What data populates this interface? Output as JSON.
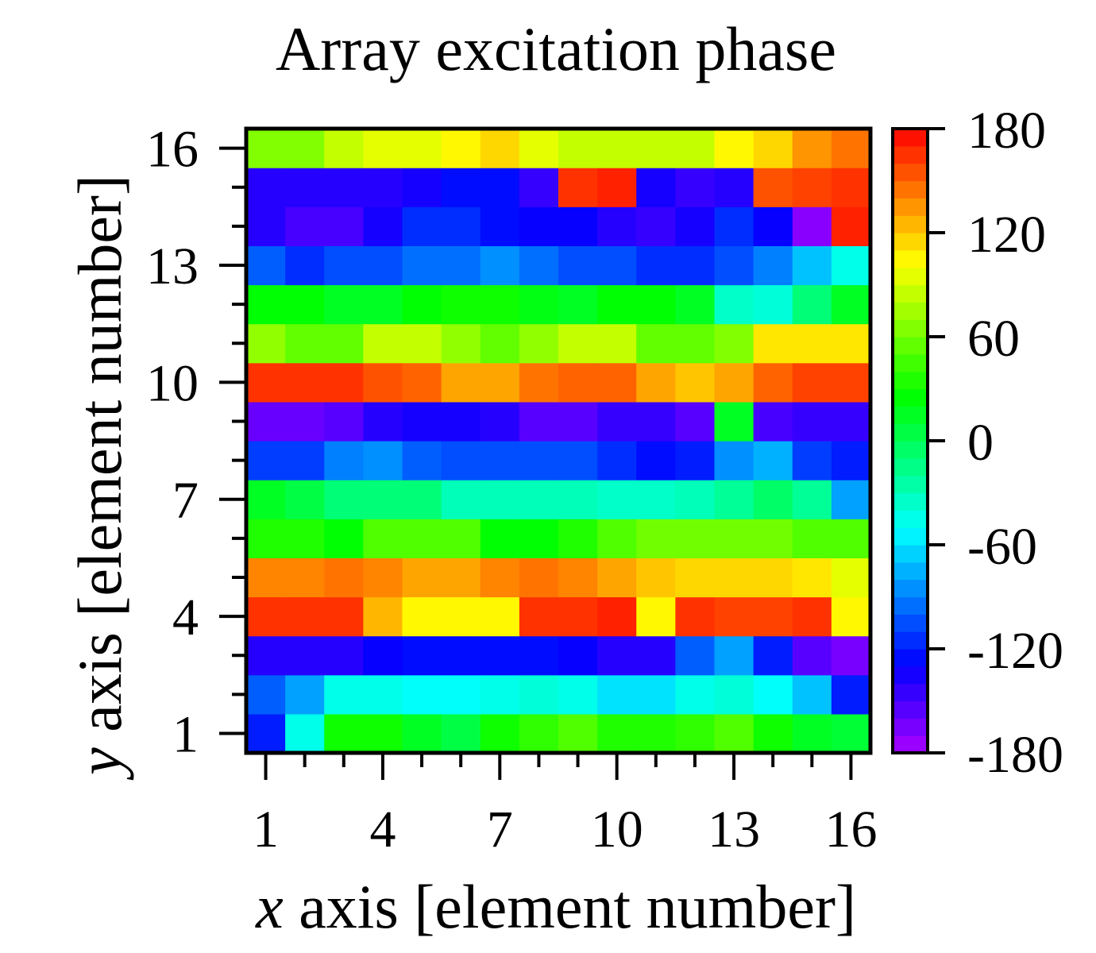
{
  "chart_data": {
    "type": "heatmap",
    "title": "Array excitation phase",
    "xlabel_var": "x",
    "xlabel_rest": " axis [element number]",
    "ylabel_var": "y",
    "ylabel_rest": " axis [element number]",
    "x_range": [
      1,
      16
    ],
    "y_range": [
      1,
      16
    ],
    "x_ticks": [
      1,
      4,
      7,
      10,
      13,
      16
    ],
    "y_ticks": [
      1,
      4,
      7,
      10,
      13,
      16
    ],
    "colorbar": {
      "range": [
        -180,
        180
      ],
      "ticks": [
        180,
        120,
        60,
        0,
        -60,
        -120,
        -180
      ],
      "tick_labels": [
        "180",
        "120",
        "60",
        "0",
        "-60",
        "-120",
        "-180"
      ]
    },
    "values_rows_from_y1": [
      [
        -120,
        -45,
        30,
        30,
        15,
        5,
        30,
        40,
        50,
        35,
        35,
        40,
        50,
        30,
        15,
        10
      ],
      [
        -100,
        -80,
        -45,
        -45,
        -50,
        -50,
        -45,
        -40,
        -45,
        -60,
        -60,
        -45,
        -40,
        -50,
        -70,
        -120
      ],
      [
        -140,
        -140,
        -140,
        -130,
        -125,
        -125,
        -125,
        -125,
        -130,
        -140,
        -140,
        -100,
        -80,
        -120,
        -155,
        -165
      ],
      [
        165,
        165,
        165,
        125,
        105,
        105,
        105,
        165,
        165,
        170,
        105,
        165,
        160,
        160,
        165,
        105
      ],
      [
        140,
        140,
        145,
        140,
        130,
        130,
        140,
        145,
        140,
        130,
        120,
        115,
        115,
        115,
        110,
        95
      ],
      [
        35,
        35,
        25,
        50,
        50,
        50,
        25,
        25,
        35,
        50,
        60,
        60,
        60,
        60,
        50,
        50
      ],
      [
        15,
        5,
        -10,
        -10,
        -10,
        -30,
        -30,
        -30,
        -30,
        -35,
        -35,
        -30,
        -20,
        -5,
        -20,
        -80
      ],
      [
        -110,
        -110,
        -90,
        -85,
        -100,
        -105,
        -105,
        -105,
        -105,
        -115,
        -125,
        -120,
        -85,
        -75,
        -110,
        -120
      ],
      [
        -160,
        -160,
        -155,
        -140,
        -135,
        -135,
        -140,
        -155,
        -155,
        -145,
        -145,
        -155,
        15,
        -150,
        -145,
        -145
      ],
      [
        165,
        165,
        165,
        155,
        150,
        130,
        130,
        145,
        150,
        150,
        130,
        120,
        130,
        150,
        160,
        160
      ],
      [
        70,
        55,
        55,
        85,
        85,
        70,
        55,
        70,
        85,
        85,
        55,
        55,
        65,
        110,
        110,
        110
      ],
      [
        25,
        25,
        15,
        15,
        25,
        30,
        30,
        20,
        15,
        25,
        25,
        15,
        -35,
        -40,
        -10,
        15
      ],
      [
        -100,
        -115,
        -105,
        -105,
        -95,
        -95,
        -85,
        -95,
        -105,
        -105,
        -115,
        -115,
        -105,
        -90,
        -70,
        -45
      ],
      [
        -140,
        -150,
        -150,
        -135,
        -115,
        -115,
        -125,
        -130,
        -130,
        -140,
        -145,
        -135,
        -115,
        -130,
        -170,
        170
      ],
      [
        -140,
        -140,
        -140,
        -140,
        -135,
        -125,
        -125,
        -145,
        165,
        170,
        -135,
        -145,
        -140,
        155,
        160,
        165
      ],
      [
        65,
        65,
        85,
        95,
        95,
        105,
        115,
        95,
        85,
        85,
        85,
        85,
        105,
        115,
        135,
        145
      ]
    ]
  }
}
